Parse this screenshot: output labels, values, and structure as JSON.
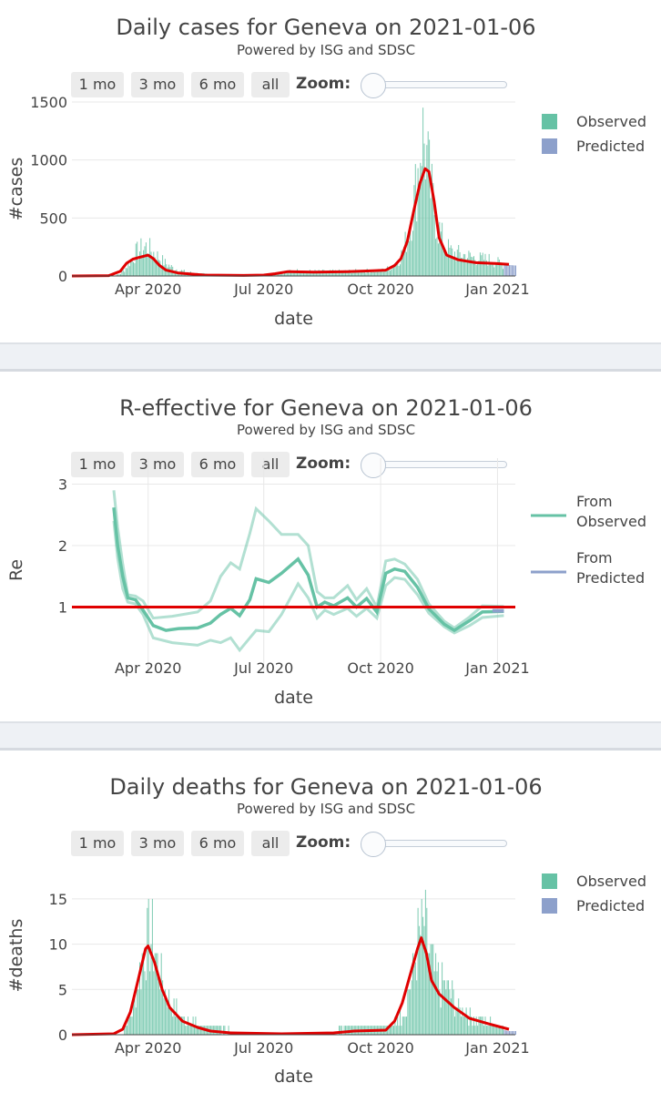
{
  "colors": {
    "observed": "#66c2a5",
    "predicted": "#8da0cb",
    "fit": "#e00000",
    "grid": "#e8e8e8"
  },
  "range_buttons": [
    "1 mo",
    "3 mo",
    "6 mo",
    "all"
  ],
  "zoom_label": "Zoom:",
  "chart_data": [
    {
      "id": "cases",
      "type": "bar",
      "title": "Daily cases for Geneva on 2021-01-06",
      "subtitle": "Powered by ISG and SDSC",
      "xlabel": "date",
      "ylabel": "#cases",
      "x_range": [
        "2020-02-01",
        "2021-01-15"
      ],
      "ylim": [
        0,
        1500
      ],
      "yticks": [
        0,
        500,
        1000,
        1500
      ],
      "xticks": [
        "Apr 2020",
        "Jul 2020",
        "Oct 2020",
        "Jan 2021"
      ],
      "legend_position": "top-right",
      "legend": [
        "Observed",
        "Predicted"
      ],
      "observed_points": [
        [
          "2020-02-01",
          0
        ],
        [
          "2020-02-28",
          0
        ],
        [
          "2020-03-05",
          3
        ],
        [
          "2020-03-10",
          20
        ],
        [
          "2020-03-14",
          70
        ],
        [
          "2020-03-18",
          140
        ],
        [
          "2020-03-22",
          200
        ],
        [
          "2020-03-26",
          230
        ],
        [
          "2020-03-30",
          250
        ],
        [
          "2020-04-03",
          220
        ],
        [
          "2020-04-08",
          170
        ],
        [
          "2020-04-14",
          110
        ],
        [
          "2020-04-20",
          70
        ],
        [
          "2020-04-28",
          40
        ],
        [
          "2020-05-10",
          20
        ],
        [
          "2020-05-25",
          10
        ],
        [
          "2020-06-10",
          7
        ],
        [
          "2020-06-25",
          10
        ],
        [
          "2020-07-05",
          18
        ],
        [
          "2020-07-15",
          30
        ],
        [
          "2020-07-25",
          45
        ],
        [
          "2020-08-05",
          40
        ],
        [
          "2020-08-20",
          38
        ],
        [
          "2020-09-05",
          40
        ],
        [
          "2020-09-20",
          45
        ],
        [
          "2020-09-28",
          42
        ],
        [
          "2020-10-05",
          55
        ],
        [
          "2020-10-12",
          100
        ],
        [
          "2020-10-18",
          200
        ],
        [
          "2020-10-23",
          400
        ],
        [
          "2020-10-27",
          650
        ],
        [
          "2020-10-30",
          900
        ],
        [
          "2020-11-02",
          1250
        ],
        [
          "2020-11-05",
          1100
        ],
        [
          "2020-11-09",
          750
        ],
        [
          "2020-11-14",
          450
        ],
        [
          "2020-11-20",
          260
        ],
        [
          "2020-11-26",
          200
        ],
        [
          "2020-12-05",
          180
        ],
        [
          "2020-12-15",
          150
        ],
        [
          "2020-12-25",
          140
        ],
        [
          "2021-01-02",
          110
        ],
        [
          "2021-01-06",
          100
        ]
      ],
      "fit_points": [
        [
          "2020-02-01",
          0
        ],
        [
          "2020-03-01",
          3
        ],
        [
          "2020-03-10",
          40
        ],
        [
          "2020-03-15",
          110
        ],
        [
          "2020-03-20",
          145
        ],
        [
          "2020-03-25",
          160
        ],
        [
          "2020-04-01",
          180
        ],
        [
          "2020-04-05",
          150
        ],
        [
          "2020-04-10",
          90
        ],
        [
          "2020-04-15",
          50
        ],
        [
          "2020-04-25",
          25
        ],
        [
          "2020-05-15",
          8
        ],
        [
          "2020-06-15",
          5
        ],
        [
          "2020-07-01",
          8
        ],
        [
          "2020-07-10",
          20
        ],
        [
          "2020-07-20",
          38
        ],
        [
          "2020-08-10",
          33
        ],
        [
          "2020-09-05",
          38
        ],
        [
          "2020-09-25",
          45
        ],
        [
          "2020-10-05",
          50
        ],
        [
          "2020-10-12",
          90
        ],
        [
          "2020-10-17",
          150
        ],
        [
          "2020-10-22",
          300
        ],
        [
          "2020-10-27",
          560
        ],
        [
          "2020-11-01",
          800
        ],
        [
          "2020-11-05",
          925
        ],
        [
          "2020-11-08",
          900
        ],
        [
          "2020-11-12",
          650
        ],
        [
          "2020-11-16",
          330
        ],
        [
          "2020-11-22",
          180
        ],
        [
          "2020-12-01",
          140
        ],
        [
          "2020-12-15",
          115
        ],
        [
          "2020-12-30",
          108
        ],
        [
          "2021-01-10",
          100
        ]
      ],
      "predicted_points": [
        [
          "2021-01-06",
          100
        ],
        [
          "2021-01-10",
          95
        ],
        [
          "2021-01-15",
          90
        ]
      ]
    },
    {
      "id": "re",
      "type": "line",
      "title": "R-effective for Geneva on 2021-01-06",
      "subtitle": "Powered by ISG and SDSC",
      "xlabel": "date",
      "ylabel": "Re",
      "x_range": [
        "2020-02-01",
        "2021-01-15"
      ],
      "ylim": [
        0,
        3.2
      ],
      "yticks": [
        1,
        2,
        3
      ],
      "xticks": [
        "Apr 2020",
        "Jul 2020",
        "Oct 2020",
        "Jan 2021"
      ],
      "legend_position": "top-right",
      "legend": [
        "From Observed",
        "From Predicted"
      ],
      "reference_line": 1,
      "re_mean": [
        [
          "2020-03-05",
          2.62
        ],
        [
          "2020-03-08",
          2.0
        ],
        [
          "2020-03-12",
          1.5
        ],
        [
          "2020-03-16",
          1.15
        ],
        [
          "2020-03-22",
          1.12
        ],
        [
          "2020-03-28",
          0.95
        ],
        [
          "2020-04-05",
          0.7
        ],
        [
          "2020-04-15",
          0.62
        ],
        [
          "2020-04-25",
          0.65
        ],
        [
          "2020-05-10",
          0.66
        ],
        [
          "2020-05-20",
          0.74
        ],
        [
          "2020-05-28",
          0.88
        ],
        [
          "2020-06-05",
          0.98
        ],
        [
          "2020-06-12",
          0.86
        ],
        [
          "2020-06-20",
          1.12
        ],
        [
          "2020-06-25",
          1.46
        ],
        [
          "2020-07-05",
          1.4
        ],
        [
          "2020-07-15",
          1.55
        ],
        [
          "2020-07-28",
          1.78
        ],
        [
          "2020-08-05",
          1.52
        ],
        [
          "2020-08-12",
          1.0
        ],
        [
          "2020-08-18",
          1.08
        ],
        [
          "2020-08-25",
          1.02
        ],
        [
          "2020-09-05",
          1.15
        ],
        [
          "2020-09-12",
          1.0
        ],
        [
          "2020-09-20",
          1.14
        ],
        [
          "2020-09-28",
          0.92
        ],
        [
          "2020-10-05",
          1.55
        ],
        [
          "2020-10-12",
          1.62
        ],
        [
          "2020-10-20",
          1.58
        ],
        [
          "2020-10-30",
          1.32
        ],
        [
          "2020-11-08",
          0.97
        ],
        [
          "2020-11-20",
          0.72
        ],
        [
          "2020-11-28",
          0.62
        ],
        [
          "2020-12-10",
          0.78
        ],
        [
          "2020-12-20",
          0.92
        ],
        [
          "2021-01-06",
          0.93
        ]
      ],
      "re_upper": [
        [
          "2020-03-05",
          2.9
        ],
        [
          "2020-03-08",
          2.3
        ],
        [
          "2020-03-12",
          1.7
        ],
        [
          "2020-03-16",
          1.2
        ],
        [
          "2020-03-22",
          1.18
        ],
        [
          "2020-03-28",
          1.1
        ],
        [
          "2020-04-05",
          0.82
        ],
        [
          "2020-04-20",
          0.85
        ],
        [
          "2020-05-10",
          0.92
        ],
        [
          "2020-05-20",
          1.1
        ],
        [
          "2020-05-28",
          1.5
        ],
        [
          "2020-06-05",
          1.72
        ],
        [
          "2020-06-12",
          1.62
        ],
        [
          "2020-06-20",
          2.2
        ],
        [
          "2020-06-25",
          2.6
        ],
        [
          "2020-07-05",
          2.4
        ],
        [
          "2020-07-15",
          2.18
        ],
        [
          "2020-07-28",
          2.18
        ],
        [
          "2020-08-05",
          2.0
        ],
        [
          "2020-08-12",
          1.25
        ],
        [
          "2020-08-18",
          1.15
        ],
        [
          "2020-08-25",
          1.15
        ],
        [
          "2020-09-05",
          1.35
        ],
        [
          "2020-09-12",
          1.12
        ],
        [
          "2020-09-20",
          1.3
        ],
        [
          "2020-09-28",
          1.0
        ],
        [
          "2020-10-05",
          1.75
        ],
        [
          "2020-10-12",
          1.78
        ],
        [
          "2020-10-20",
          1.7
        ],
        [
          "2020-10-30",
          1.45
        ],
        [
          "2020-11-08",
          1.05
        ],
        [
          "2020-11-20",
          0.77
        ],
        [
          "2020-11-28",
          0.66
        ],
        [
          "2020-12-10",
          0.84
        ],
        [
          "2020-12-20",
          1.02
        ],
        [
          "2021-01-06",
          1.01
        ]
      ],
      "re_lower": [
        [
          "2020-03-05",
          2.4
        ],
        [
          "2020-03-08",
          1.8
        ],
        [
          "2020-03-12",
          1.3
        ],
        [
          "2020-03-16",
          1.08
        ],
        [
          "2020-03-22",
          1.05
        ],
        [
          "2020-03-28",
          0.88
        ],
        [
          "2020-04-05",
          0.5
        ],
        [
          "2020-04-20",
          0.42
        ],
        [
          "2020-05-10",
          0.38
        ],
        [
          "2020-05-20",
          0.46
        ],
        [
          "2020-05-28",
          0.42
        ],
        [
          "2020-06-05",
          0.5
        ],
        [
          "2020-06-12",
          0.3
        ],
        [
          "2020-06-20",
          0.5
        ],
        [
          "2020-06-25",
          0.62
        ],
        [
          "2020-07-05",
          0.6
        ],
        [
          "2020-07-15",
          0.88
        ],
        [
          "2020-07-28",
          1.38
        ],
        [
          "2020-08-05",
          1.15
        ],
        [
          "2020-08-12",
          0.82
        ],
        [
          "2020-08-18",
          0.95
        ],
        [
          "2020-08-25",
          0.88
        ],
        [
          "2020-09-05",
          0.98
        ],
        [
          "2020-09-12",
          0.85
        ],
        [
          "2020-09-20",
          0.98
        ],
        [
          "2020-09-28",
          0.82
        ],
        [
          "2020-10-05",
          1.35
        ],
        [
          "2020-10-12",
          1.48
        ],
        [
          "2020-10-20",
          1.45
        ],
        [
          "2020-10-30",
          1.2
        ],
        [
          "2020-11-08",
          0.9
        ],
        [
          "2020-11-20",
          0.68
        ],
        [
          "2020-11-28",
          0.58
        ],
        [
          "2020-12-10",
          0.7
        ],
        [
          "2020-12-20",
          0.83
        ],
        [
          "2021-01-06",
          0.86
        ]
      ],
      "predicted_mean": [
        [
          "2020-12-28",
          0.94
        ],
        [
          "2021-01-06",
          0.94
        ]
      ]
    },
    {
      "id": "deaths",
      "type": "bar",
      "title": "Daily deaths for Geneva on 2021-01-06",
      "subtitle": "Powered by ISG and SDSC",
      "xlabel": "date",
      "ylabel": "#deaths",
      "x_range": [
        "2020-02-01",
        "2021-01-15"
      ],
      "ylim": [
        0,
        17.5
      ],
      "yticks": [
        0,
        5,
        10,
        15
      ],
      "xticks": [
        "Apr 2020",
        "Jul 2020",
        "Oct 2020",
        "Jan 2021"
      ],
      "legend_position": "top-right",
      "legend": [
        "Observed",
        "Predicted"
      ],
      "observed_points": [
        [
          "2020-02-01",
          0
        ],
        [
          "2020-03-08",
          0
        ],
        [
          "2020-03-15",
          1
        ],
        [
          "2020-03-20",
          3
        ],
        [
          "2020-03-25",
          7
        ],
        [
          "2020-03-30",
          10
        ],
        [
          "2020-04-03",
          11
        ],
        [
          "2020-04-08",
          8
        ],
        [
          "2020-04-14",
          5
        ],
        [
          "2020-04-20",
          3
        ],
        [
          "2020-04-28",
          2
        ],
        [
          "2020-05-10",
          1
        ],
        [
          "2020-05-25",
          1
        ],
        [
          "2020-06-10",
          0
        ],
        [
          "2020-08-20",
          0
        ],
        [
          "2020-09-05",
          1
        ],
        [
          "2020-09-25",
          1
        ],
        [
          "2020-10-10",
          1
        ],
        [
          "2020-10-20",
          3
        ],
        [
          "2020-10-25",
          6
        ],
        [
          "2020-10-30",
          10
        ],
        [
          "2020-11-04",
          12
        ],
        [
          "2020-11-08",
          9
        ],
        [
          "2020-11-14",
          6
        ],
        [
          "2020-11-22",
          5
        ],
        [
          "2020-12-01",
          3
        ],
        [
          "2020-12-15",
          2
        ],
        [
          "2021-01-01",
          1
        ],
        [
          "2021-01-06",
          1
        ]
      ],
      "fit_points": [
        [
          "2020-02-01",
          0
        ],
        [
          "2020-03-05",
          0.1
        ],
        [
          "2020-03-12",
          0.6
        ],
        [
          "2020-03-18",
          2.5
        ],
        [
          "2020-03-24",
          6
        ],
        [
          "2020-03-30",
          9.5
        ],
        [
          "2020-04-01",
          9.8
        ],
        [
          "2020-04-06",
          8
        ],
        [
          "2020-04-12",
          5
        ],
        [
          "2020-04-18",
          3
        ],
        [
          "2020-04-28",
          1.5
        ],
        [
          "2020-05-10",
          0.8
        ],
        [
          "2020-05-20",
          0.4
        ],
        [
          "2020-06-05",
          0.2
        ],
        [
          "2020-07-15",
          0.1
        ],
        [
          "2020-08-25",
          0.2
        ],
        [
          "2020-09-10",
          0.4
        ],
        [
          "2020-10-05",
          0.5
        ],
        [
          "2020-10-12",
          1.5
        ],
        [
          "2020-10-18",
          3.5
        ],
        [
          "2020-10-25",
          7
        ],
        [
          "2020-10-30",
          9.5
        ],
        [
          "2020-11-02",
          10.7
        ],
        [
          "2020-11-06",
          9
        ],
        [
          "2020-11-10",
          6
        ],
        [
          "2020-11-16",
          4.5
        ],
        [
          "2020-11-28",
          3
        ],
        [
          "2020-12-10",
          1.8
        ],
        [
          "2020-12-25",
          1.2
        ],
        [
          "2021-01-10",
          0.6
        ]
      ],
      "predicted_points": [
        [
          "2021-01-06",
          0.5
        ],
        [
          "2021-01-10",
          0.4
        ],
        [
          "2021-01-15",
          0.4
        ]
      ]
    }
  ]
}
